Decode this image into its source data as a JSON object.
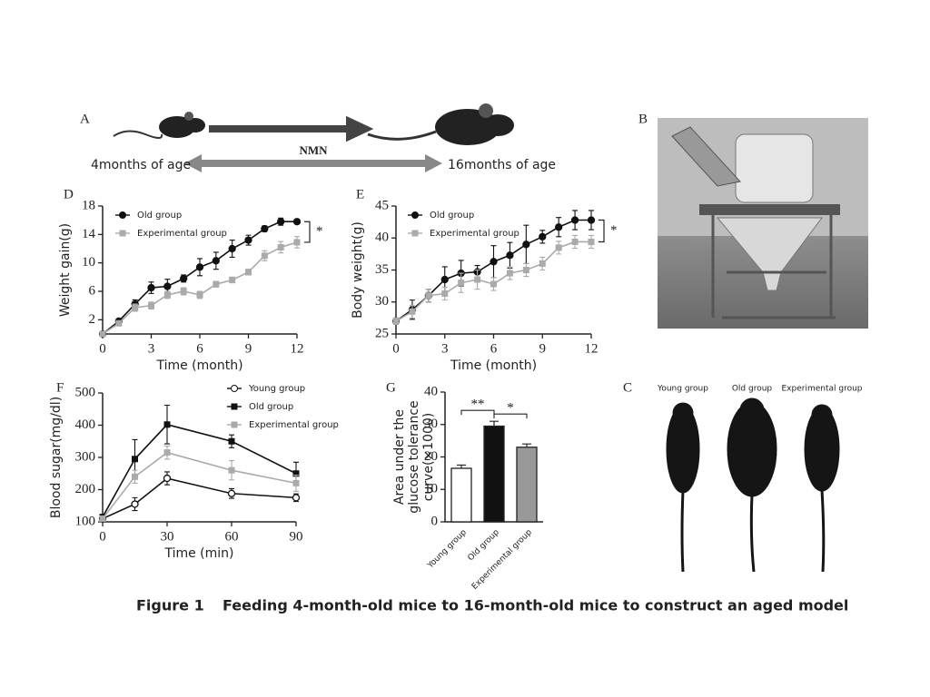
{
  "diagram": {
    "label": "A",
    "arrow_label": "NMN",
    "start": "4months of age",
    "end": "16months of age"
  },
  "photo_b": {
    "label": "B"
  },
  "photo_c": {
    "label": "C",
    "groups": [
      "Young group",
      "Old group",
      "Experimental group"
    ]
  },
  "chart_data": [
    {
      "label": "D",
      "type": "line",
      "xlabel": "Time (month)",
      "ylabel": "Weight gain(g)",
      "legend": "upper left",
      "annotation": "*",
      "x": [
        0,
        1,
        2,
        3,
        4,
        5,
        6,
        7,
        8,
        9,
        10,
        11,
        12
      ],
      "xlim": [
        0,
        12
      ],
      "xticks": [
        0,
        3,
        6,
        9,
        12
      ],
      "ylim": [
        0,
        18
      ],
      "yticks": [
        2,
        6,
        10,
        14,
        18
      ],
      "series": [
        {
          "name": "Old group",
          "color": "#111111",
          "marker": "circle",
          "values": [
            0,
            1.8,
            4.2,
            6.5,
            6.7,
            7.8,
            9.4,
            10.3,
            12,
            13.2,
            14.8,
            15.8,
            15.8
          ],
          "errors": [
            0,
            0.3,
            0.6,
            0.8,
            1,
            0.5,
            1.2,
            1.2,
            1.2,
            0.7,
            0.4,
            0.5,
            0.3
          ]
        },
        {
          "name": "Experimental group",
          "color": "#aaaaaa",
          "marker": "square",
          "values": [
            0,
            1.5,
            3.7,
            4,
            5.5,
            6,
            5.5,
            7,
            7.6,
            8.7,
            11,
            12.2,
            12.9
          ],
          "errors": [
            0,
            0.3,
            0.5,
            0.5,
            0.5,
            0.5,
            0.5,
            0.4,
            0.4,
            0.4,
            0.7,
            0.8,
            0.8
          ]
        }
      ]
    },
    {
      "label": "E",
      "type": "line",
      "xlabel": "Time (month)",
      "ylabel": "Body weight(g)",
      "legend": "upper left",
      "annotation": "*",
      "x": [
        0,
        1,
        2,
        3,
        4,
        5,
        6,
        7,
        8,
        9,
        10,
        11,
        12
      ],
      "xlim": [
        0,
        12
      ],
      "xticks": [
        0,
        3,
        6,
        9,
        12
      ],
      "ylim": [
        25,
        45
      ],
      "yticks": [
        25,
        30,
        35,
        40,
        45
      ],
      "series": [
        {
          "name": "Old group",
          "color": "#111111",
          "marker": "circle",
          "values": [
            27,
            28.8,
            31,
            33.5,
            34.5,
            34.7,
            36.3,
            37.3,
            39,
            40.2,
            41.7,
            42.8,
            42.8
          ],
          "errors": [
            0.5,
            1.5,
            1,
            2,
            2,
            1,
            2.5,
            2,
            3,
            1,
            1.5,
            1.5,
            1.5
          ]
        },
        {
          "name": "Experimental group",
          "color": "#aaaaaa",
          "marker": "square",
          "values": [
            27,
            28.5,
            31,
            31.3,
            33,
            33.5,
            32.8,
            34.5,
            35,
            36,
            38.5,
            39.4,
            39.4
          ],
          "errors": [
            0.5,
            1,
            1,
            1,
            1.5,
            1.5,
            1,
            1,
            1,
            1,
            1,
            1,
            1
          ]
        }
      ]
    },
    {
      "label": "F",
      "type": "line",
      "xlabel": "Time (min)",
      "ylabel": "Blood sugar(mg/dl)",
      "legend": "upper right",
      "x": [
        0,
        15,
        30,
        60,
        90
      ],
      "xlim": [
        0,
        90
      ],
      "xticks": [
        0,
        30,
        60,
        90
      ],
      "ylim": [
        100,
        500
      ],
      "yticks": [
        100,
        200,
        300,
        400,
        500
      ],
      "series": [
        {
          "name": "Young group",
          "color": "#111111",
          "marker": "open-circle",
          "values": [
            110,
            155,
            235,
            188,
            175
          ],
          "errors": [
            0,
            20,
            20,
            15,
            12
          ]
        },
        {
          "name": "Old group",
          "color": "#111111",
          "marker": "square",
          "values": [
            115,
            295,
            402,
            350,
            250
          ],
          "errors": [
            0,
            60,
            60,
            20,
            35
          ]
        },
        {
          "name": "Experimental group",
          "color": "#aaaaaa",
          "marker": "square",
          "values": [
            110,
            240,
            315,
            260,
            220
          ],
          "errors": [
            0,
            20,
            20,
            30,
            25
          ]
        }
      ]
    },
    {
      "label": "G",
      "type": "bar",
      "ylabel": [
        "Area under the",
        "glucose tolerance",
        "curve(×1000)"
      ],
      "categories": [
        "Young group",
        "Old group",
        "Experimental group"
      ],
      "values": [
        16.5,
        29.5,
        23
      ],
      "errors": [
        1,
        1.5,
        1
      ],
      "colors": [
        "#ffffff",
        "#111111",
        "#999999"
      ],
      "ylim": [
        0,
        40
      ],
      "yticks": [
        0,
        10,
        20,
        30,
        40
      ],
      "annotations": [
        "**",
        "*"
      ]
    }
  ],
  "caption": {
    "number": "Figure 1",
    "text": "Feeding 4-month-old mice to 16-month-old mice to construct an aged model"
  }
}
